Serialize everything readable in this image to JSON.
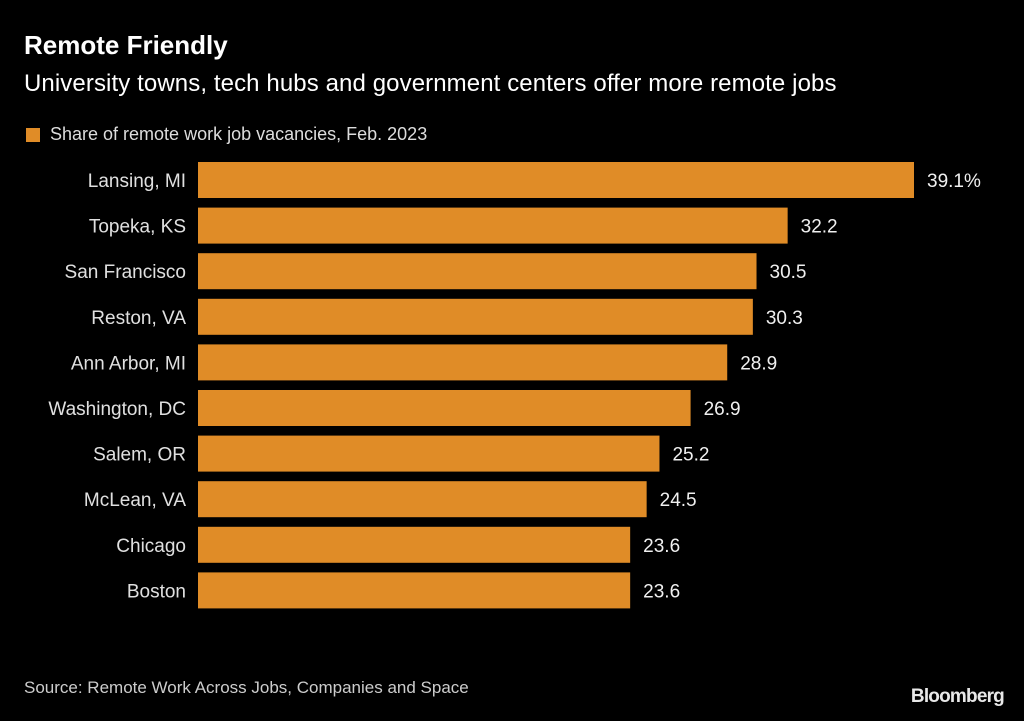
{
  "header": {
    "title": "Remote Friendly",
    "subtitle": "University towns, tech hubs and government centers offer more remote jobs"
  },
  "legend": {
    "label": "Share of remote work job vacancies, Feb. 2023",
    "color": "#E08C27"
  },
  "footer": {
    "source": "Source: Remote Work Across Jobs, Companies and Space",
    "brand": "Bloomberg"
  },
  "chart_data": {
    "type": "bar",
    "orientation": "horizontal",
    "title": "Remote Friendly",
    "subtitle": "University towns, tech hubs and government centers offer more remote jobs",
    "categories": [
      "Lansing, MI",
      "Topeka, KS",
      "San Francisco",
      "Reston, VA",
      "Ann Arbor, MI",
      "Washington, DC",
      "Salem, OR",
      "McLean, VA",
      "Chicago",
      "Boston"
    ],
    "series": [
      {
        "name": "Share of remote work job vacancies, Feb. 2023",
        "color": "#E08C27",
        "values": [
          39.1,
          32.2,
          30.5,
          30.3,
          28.9,
          26.9,
          25.2,
          24.5,
          23.6,
          23.6
        ]
      }
    ],
    "data_labels": [
      "39.1%",
      "32.2",
      "30.5",
      "30.3",
      "28.9",
      "26.9",
      "25.2",
      "24.5",
      "23.6",
      "23.6"
    ],
    "unit": "%",
    "xlim": [
      0,
      39.1
    ],
    "grid": false,
    "legend_position": "top-left",
    "xlabel": "",
    "ylabel": ""
  }
}
